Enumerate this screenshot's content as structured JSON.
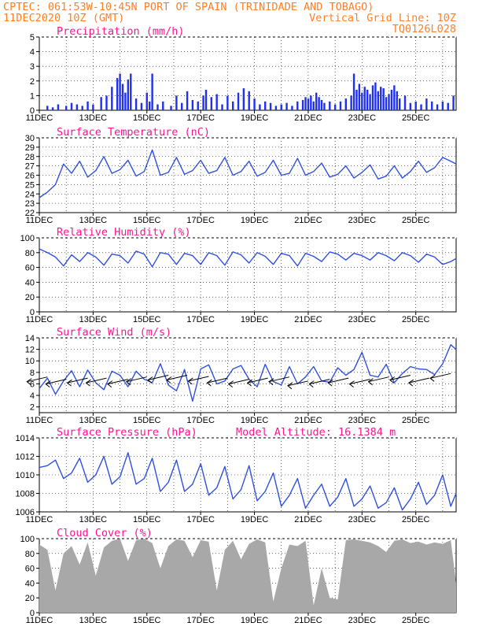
{
  "header": {
    "line1": "CPTEC:   061:53W-10:45N   PORT OF SPAIN (TRINIDADE AND TOBAGO)",
    "date": "11DEC2020 10Z (GMT)",
    "grid_note": "Vertical Grid Line: 10Z",
    "code": "TQ0126L028"
  },
  "colors": {
    "header": "#ff7f27",
    "title": "#ff1493",
    "line": "#3050e0",
    "bar": "#2030f0",
    "cloud": "#a8a8a8"
  },
  "chart_data": [
    {
      "id": "precip",
      "type": "bar",
      "title": "Precipitation (mm/h)",
      "ylim": [
        0,
        5
      ],
      "yticks": [
        0,
        1,
        2,
        3,
        4,
        5
      ],
      "x_range_days": [
        0,
        15.5
      ],
      "x_ticks": [
        "11DEC",
        "13DEC",
        "15DEC",
        "17DEC",
        "19DEC",
        "21DEC",
        "23DEC",
        "25DEC"
      ],
      "x": [
        0.3,
        0.5,
        0.7,
        1.0,
        1.2,
        1.4,
        1.6,
        1.8,
        2.0,
        2.3,
        2.5,
        2.7,
        2.9,
        3.0,
        3.1,
        3.2,
        3.3,
        3.4,
        3.6,
        3.8,
        4.0,
        4.1,
        4.2,
        4.4,
        4.6,
        4.9,
        5.1,
        5.3,
        5.5,
        5.7,
        5.9,
        6.1,
        6.2,
        6.4,
        6.6,
        6.8,
        7.0,
        7.2,
        7.4,
        7.6,
        7.8,
        8.0,
        8.2,
        8.4,
        8.6,
        8.8,
        9.0,
        9.2,
        9.4,
        9.6,
        9.8,
        9.9,
        10.0,
        10.1,
        10.2,
        10.3,
        10.4,
        10.5,
        10.6,
        10.8,
        11.0,
        11.2,
        11.4,
        11.6,
        11.7,
        11.8,
        11.9,
        12.0,
        12.1,
        12.2,
        12.3,
        12.4,
        12.5,
        12.6,
        12.7,
        12.8,
        12.9,
        13.0,
        13.1,
        13.2,
        13.3,
        13.4,
        13.6,
        13.8,
        14.0,
        14.2,
        14.4,
        14.6,
        14.8,
        15.0,
        15.2,
        15.4
      ],
      "values": [
        0.3,
        0.2,
        0.4,
        0.3,
        0.5,
        0.4,
        0.3,
        0.6,
        0.4,
        0.9,
        1.0,
        1.6,
        2.2,
        2.5,
        1.8,
        1.2,
        2.1,
        2.5,
        0.8,
        0.5,
        1.2,
        0.6,
        2.5,
        0.4,
        0.6,
        0.3,
        1.0,
        0.5,
        1.3,
        0.7,
        0.6,
        1.0,
        1.4,
        0.9,
        1.1,
        0.4,
        1.0,
        0.6,
        1.2,
        1.5,
        1.3,
        0.8,
        0.4,
        0.6,
        0.5,
        0.3,
        0.4,
        0.5,
        0.3,
        0.6,
        0.7,
        0.9,
        0.8,
        1.0,
        0.6,
        1.2,
        0.9,
        0.7,
        0.5,
        0.6,
        0.4,
        0.6,
        0.8,
        1.0,
        2.5,
        1.4,
        1.8,
        1.2,
        1.6,
        1.4,
        1.1,
        1.7,
        1.9,
        1.3,
        1.6,
        1.5,
        0.9,
        1.1,
        1.4,
        1.7,
        1.3,
        0.8,
        1.0,
        0.5,
        0.6,
        0.4,
        0.8,
        0.6,
        0.4,
        0.6,
        0.5,
        1.0
      ]
    },
    {
      "id": "temp",
      "type": "line",
      "title": "Surface Temperature (nC)",
      "ylim": [
        22,
        30
      ],
      "yticks": [
        22,
        23,
        24,
        25,
        26,
        27,
        28,
        29,
        30
      ],
      "x": [
        0,
        0.3,
        0.6,
        0.9,
        1.2,
        1.5,
        1.8,
        2.1,
        2.4,
        2.7,
        3.0,
        3.3,
        3.6,
        3.9,
        4.2,
        4.5,
        4.8,
        5.1,
        5.4,
        5.7,
        6.0,
        6.3,
        6.6,
        6.9,
        7.2,
        7.5,
        7.8,
        8.1,
        8.4,
        8.7,
        9.0,
        9.3,
        9.6,
        9.9,
        10.2,
        10.5,
        10.8,
        11.1,
        11.4,
        11.7,
        12.0,
        12.3,
        12.6,
        12.9,
        13.2,
        13.5,
        13.8,
        14.1,
        14.4,
        14.7,
        15.0,
        15.3,
        15.5
      ],
      "values": [
        23.6,
        24.2,
        25.0,
        27.2,
        26.2,
        27.5,
        25.8,
        26.5,
        28.0,
        26.2,
        26.6,
        27.6,
        25.9,
        26.4,
        28.7,
        26.0,
        26.3,
        27.9,
        26.1,
        26.5,
        27.6,
        26.2,
        26.5,
        27.9,
        26.0,
        26.4,
        27.5,
        25.9,
        26.3,
        27.6,
        26.0,
        26.2,
        27.8,
        26.0,
        26.4,
        27.3,
        25.8,
        26.1,
        27.0,
        25.7,
        26.3,
        27.1,
        25.6,
        25.9,
        27.0,
        25.7,
        26.4,
        27.5,
        26.3,
        26.8,
        27.9,
        27.5,
        27.2
      ]
    },
    {
      "id": "rh",
      "type": "line",
      "title": "Relative Humidity (%)",
      "ylim": [
        0,
        100
      ],
      "yticks": [
        0,
        20,
        40,
        60,
        80,
        100
      ],
      "x": [
        0,
        0.3,
        0.6,
        0.9,
        1.2,
        1.5,
        1.8,
        2.1,
        2.4,
        2.7,
        3.0,
        3.3,
        3.6,
        3.9,
        4.2,
        4.5,
        4.8,
        5.1,
        5.4,
        5.7,
        6.0,
        6.3,
        6.6,
        6.9,
        7.2,
        7.5,
        7.8,
        8.1,
        8.4,
        8.7,
        9.0,
        9.3,
        9.6,
        9.9,
        10.2,
        10.5,
        10.8,
        11.1,
        11.4,
        11.7,
        12.0,
        12.3,
        12.6,
        12.9,
        13.2,
        13.5,
        13.8,
        14.1,
        14.4,
        14.7,
        15.0,
        15.3,
        15.5
      ],
      "values": [
        85,
        80,
        74,
        62,
        77,
        68,
        80,
        74,
        63,
        78,
        76,
        66,
        82,
        78,
        61,
        80,
        78,
        64,
        79,
        76,
        64,
        80,
        76,
        63,
        81,
        77,
        66,
        80,
        75,
        64,
        79,
        76,
        62,
        79,
        75,
        68,
        81,
        78,
        70,
        79,
        76,
        70,
        80,
        76,
        69,
        80,
        76,
        67,
        78,
        74,
        64,
        68,
        72
      ]
    },
    {
      "id": "wind",
      "type": "line",
      "title": "Surface Wind (m/s)",
      "ylim": [
        1,
        14
      ],
      "yticks": [
        2,
        4,
        6,
        8,
        10,
        12,
        14
      ],
      "x": [
        0,
        0.3,
        0.6,
        0.9,
        1.2,
        1.5,
        1.8,
        2.1,
        2.4,
        2.7,
        3.0,
        3.3,
        3.6,
        3.9,
        4.2,
        4.5,
        4.8,
        5.1,
        5.4,
        5.7,
        6.0,
        6.3,
        6.6,
        6.9,
        7.2,
        7.5,
        7.8,
        8.1,
        8.4,
        8.7,
        9.0,
        9.3,
        9.6,
        9.9,
        10.2,
        10.5,
        10.8,
        11.1,
        11.4,
        11.7,
        12.0,
        12.3,
        12.6,
        12.9,
        13.2,
        13.5,
        13.8,
        14.1,
        14.4,
        14.7,
        15.0,
        15.3,
        15.5
      ],
      "values": [
        5.2,
        7.0,
        4.2,
        6.5,
        8.3,
        5.5,
        8.4,
        6.2,
        5.0,
        8.2,
        7.5,
        5.5,
        8.2,
        6.8,
        6.2,
        9.5,
        5.8,
        4.8,
        8.5,
        3.0,
        8.6,
        9.3,
        6.0,
        6.5,
        8.6,
        9.2,
        6.8,
        5.5,
        9.4,
        6.4,
        5.8,
        9.0,
        6.0,
        7.2,
        9.0,
        6.5,
        6.3,
        8.8,
        7.5,
        8.5,
        11.5,
        7.5,
        7.2,
        9.4,
        6.2,
        7.8,
        9.0,
        8.6,
        8.5,
        7.6,
        9.5,
        12.8,
        12.0
      ],
      "barbs_x": [
        0.3,
        1.0,
        1.8,
        2.5,
        3.3,
        4.0,
        4.8,
        5.5,
        6.3,
        7.0,
        7.8,
        8.5,
        9.3,
        10.0,
        10.8,
        11.5,
        12.3,
        13.0,
        13.8,
        14.5,
        15.3
      ],
      "barbs_speed": [
        7.2,
        6.8,
        7.0,
        7.0,
        6.8,
        7.2,
        7.5,
        7.5,
        7.3,
        7.0,
        6.8,
        7.0,
        7.2,
        6.5,
        6.8,
        7.0,
        6.8,
        7.2,
        7.5,
        7.0,
        7.8
      ]
    },
    {
      "id": "pres",
      "type": "line",
      "title": "Surface Pressure (hPa)",
      "annotation": "Model Altitude: 16.1384 m",
      "ylim": [
        1006,
        1014
      ],
      "yticks": [
        1006,
        1008,
        1010,
        1012,
        1014
      ],
      "x": [
        0,
        0.3,
        0.6,
        0.9,
        1.2,
        1.5,
        1.8,
        2.1,
        2.4,
        2.7,
        3.0,
        3.3,
        3.6,
        3.9,
        4.2,
        4.5,
        4.8,
        5.1,
        5.4,
        5.7,
        6.0,
        6.3,
        6.6,
        6.9,
        7.2,
        7.5,
        7.8,
        8.1,
        8.4,
        8.7,
        9.0,
        9.3,
        9.6,
        9.9,
        10.2,
        10.5,
        10.8,
        11.1,
        11.4,
        11.7,
        12.0,
        12.3,
        12.6,
        12.9,
        13.2,
        13.5,
        13.8,
        14.1,
        14.4,
        14.7,
        15.0,
        15.3,
        15.5
      ],
      "values": [
        1010.8,
        1011.0,
        1011.6,
        1009.6,
        1010.2,
        1011.8,
        1009.2,
        1010.0,
        1012.0,
        1009.0,
        1009.8,
        1012.4,
        1009.0,
        1009.6,
        1011.8,
        1008.2,
        1009.2,
        1011.6,
        1008.2,
        1009.0,
        1011.2,
        1007.8,
        1008.6,
        1010.9,
        1007.4,
        1008.4,
        1011.0,
        1007.2,
        1008.2,
        1010.2,
        1006.6,
        1007.8,
        1009.6,
        1006.4,
        1007.8,
        1009.0,
        1006.6,
        1007.6,
        1009.6,
        1006.6,
        1007.4,
        1008.8,
        1006.4,
        1007.0,
        1008.6,
        1006.2,
        1007.4,
        1009.2,
        1006.8,
        1007.8,
        1010.0,
        1006.6,
        1008.0
      ]
    },
    {
      "id": "cloud",
      "type": "area",
      "title": "Cloud Cover (%)",
      "ylim": [
        0,
        100
      ],
      "yticks": [
        0,
        20,
        40,
        60,
        80,
        100
      ],
      "x": [
        0,
        0.3,
        0.6,
        0.9,
        1.2,
        1.5,
        1.8,
        2.1,
        2.4,
        2.7,
        3.0,
        3.3,
        3.6,
        3.9,
        4.2,
        4.5,
        4.8,
        5.1,
        5.4,
        5.7,
        6.0,
        6.3,
        6.6,
        6.9,
        7.2,
        7.5,
        7.8,
        8.1,
        8.4,
        8.7,
        9.0,
        9.3,
        9.6,
        9.9,
        10.2,
        10.5,
        10.8,
        11.1,
        11.4,
        11.7,
        12.0,
        12.3,
        12.6,
        12.9,
        13.2,
        13.5,
        13.8,
        14.1,
        14.4,
        14.7,
        15.0,
        15.3,
        15.5
      ],
      "values": [
        92,
        85,
        30,
        80,
        90,
        65,
        95,
        50,
        88,
        97,
        100,
        70,
        98,
        100,
        94,
        60,
        90,
        99,
        97,
        75,
        98,
        96,
        30,
        85,
        97,
        72,
        93,
        99,
        95,
        15,
        60,
        92,
        90,
        97,
        10,
        60,
        20,
        18,
        98,
        99,
        97,
        95,
        90,
        82,
        97,
        99,
        94,
        96,
        92,
        95,
        93,
        98,
        40
      ]
    }
  ]
}
